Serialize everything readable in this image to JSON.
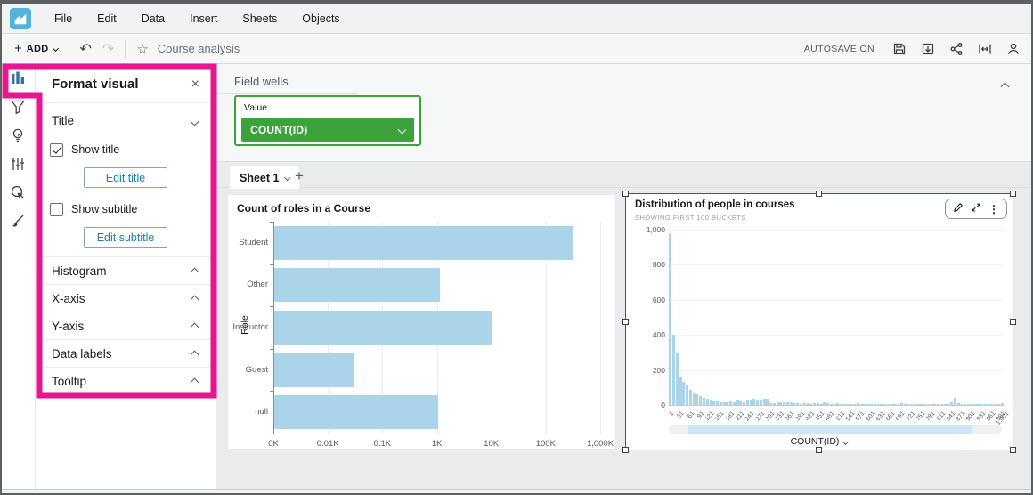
{
  "menu": {
    "items": [
      "File",
      "Edit",
      "Data",
      "Insert",
      "Sheets",
      "Objects"
    ]
  },
  "toolbar": {
    "add": "ADD",
    "title": "Course analysis",
    "autosave": "AUTOSAVE ON",
    "icons": [
      "save-icon",
      "export-icon",
      "share-icon",
      "fit-width-icon",
      "user-icon"
    ]
  },
  "rail": {
    "items": [
      "visualize",
      "filter",
      "insights",
      "parameters",
      "actions",
      "themes"
    ],
    "active": "visualize"
  },
  "format_panel": {
    "header": "Format visual",
    "title_section": {
      "label": "Title",
      "show_title": "Show title",
      "show_title_checked": true,
      "edit_title": "Edit title",
      "show_subtitle": "Show subtitle",
      "show_subtitle_checked": false,
      "edit_subtitle": "Edit subtitle"
    },
    "sections": [
      "Histogram",
      "X-axis",
      "Y-axis",
      "Data labels",
      "Tooltip"
    ]
  },
  "field_wells": {
    "header": "Field wells",
    "well": {
      "label": "Value",
      "value": "COUNT(ID)"
    }
  },
  "tabs": {
    "active": "Sheet 1",
    "add": "+"
  },
  "colors": {
    "highlight_pink": "#e7158f",
    "well_green": "#3da23c",
    "bar_blue": "#a9d4e9",
    "accent_blue": "#1f7ea8"
  },
  "chart_data": [
    {
      "type": "bar",
      "orientation": "horizontal",
      "title": "Count of roles in a Course",
      "ylabel": "Role",
      "xscale": "log",
      "categories": [
        "Student",
        "Other",
        "Instructor",
        "Guest",
        "null"
      ],
      "values": [
        310000,
        1100,
        10000,
        30,
        1000
      ],
      "xticks": [
        "0K",
        "0.01K",
        "0.1K",
        "1K",
        "10K",
        "100K",
        "1,000K"
      ],
      "xlim_log_decades": 6,
      "bar_color": "#a9d4e9"
    },
    {
      "type": "histogram",
      "title": "Distribution of people in courses",
      "subtitle": "SHOWING FIRST 100 BUCKETS",
      "xaxis_field": "COUNT(ID)",
      "ylim": [
        0,
        1000
      ],
      "yticks": [
        "0",
        "200",
        "400",
        "600",
        "800",
        "1,000"
      ],
      "xticks": [
        "1",
        "31",
        "61",
        "91",
        "121",
        "151",
        "181",
        "211",
        "241",
        "271",
        "301",
        "331",
        "361",
        "391",
        "421",
        "451",
        "481",
        "511",
        "541",
        "571",
        "601",
        "631",
        "661",
        "691",
        "721",
        "751",
        "781",
        "811",
        "841",
        "871",
        "901",
        "931",
        "961",
        "991",
        "1,001"
      ],
      "values": [
        980,
        400,
        300,
        160,
        130,
        110,
        85,
        70,
        60,
        50,
        42,
        38,
        30,
        26,
        24,
        22,
        20,
        18,
        25,
        22,
        28,
        25,
        20,
        30,
        28,
        35,
        32,
        28,
        38,
        34,
        12,
        10,
        15,
        18,
        14,
        16,
        18,
        12,
        8,
        6,
        10,
        8,
        6,
        12,
        8,
        6,
        15,
        10,
        6,
        5,
        8,
        6,
        5,
        4,
        6,
        5,
        8,
        6,
        4,
        3,
        5,
        4,
        6,
        3,
        3,
        4,
        3,
        3,
        3,
        8,
        6,
        3,
        3,
        3,
        4,
        3,
        3,
        3,
        3,
        3,
        4,
        3,
        3,
        3,
        20,
        40,
        8,
        4,
        3,
        3,
        3,
        3,
        3,
        3,
        3,
        3,
        3,
        3,
        3,
        12
      ],
      "bar_color": "#a9d4e9"
    }
  ]
}
